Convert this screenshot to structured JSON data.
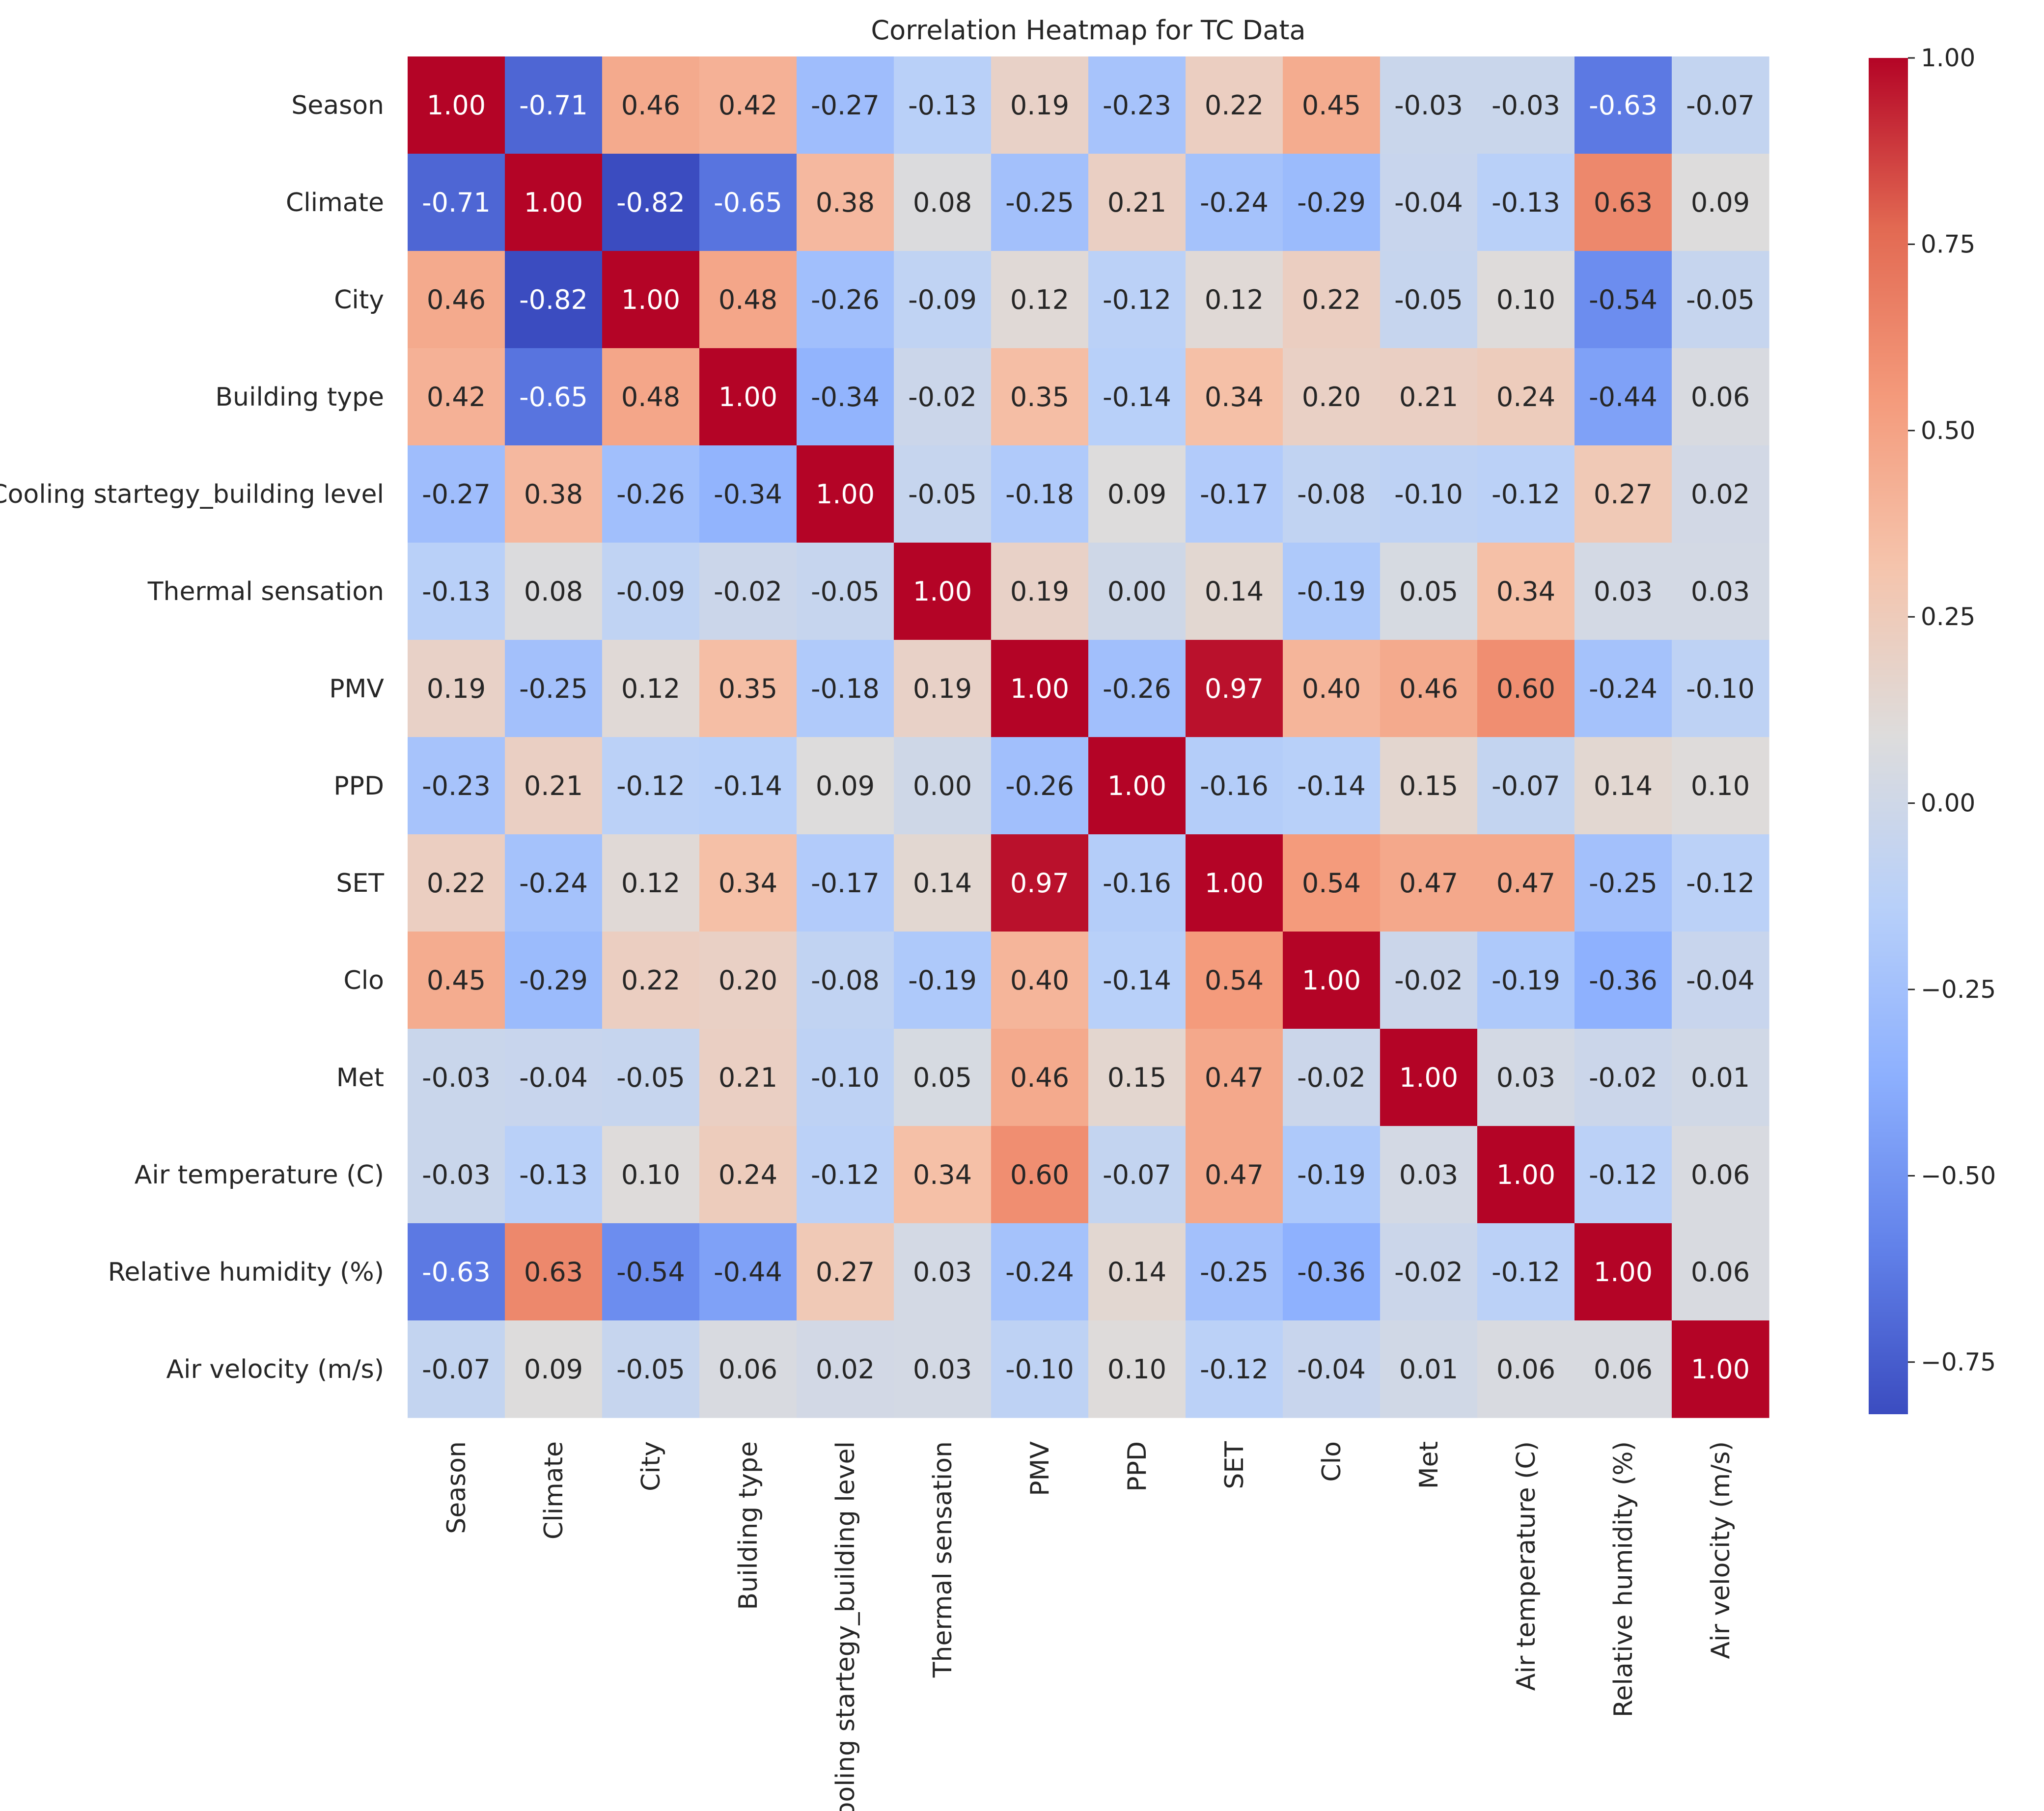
{
  "chart_data": {
    "type": "heatmap",
    "title": "Correlation Heatmap for TC Data",
    "xlabel": "",
    "ylabel": "",
    "colormap": "coolwarm",
    "colormap_stops": [
      "#3b4cc0",
      "#6282ea",
      "#8db0fe",
      "#b8d0f9",
      "#dddcdc",
      "#f5c4ac",
      "#f49a7b",
      "#e26952",
      "#b40426"
    ],
    "value_range": [
      -0.82,
      1.0
    ],
    "grid": false,
    "legend": "colorbar-right",
    "labels": [
      "Season",
      "Climate",
      "City",
      "Building type",
      "Cooling startegy_building level",
      "Thermal sensation",
      "PMV",
      "PPD",
      "SET",
      "Clo",
      "Met",
      "Air temperature (C)",
      "Relative humidity (%)",
      "Air velocity (m/s)"
    ],
    "values": [
      [
        1.0,
        -0.71,
        0.46,
        0.42,
        -0.27,
        -0.13,
        0.19,
        -0.23,
        0.22,
        0.45,
        -0.03,
        -0.03,
        -0.63,
        -0.07
      ],
      [
        -0.71,
        1.0,
        -0.82,
        -0.65,
        0.38,
        0.08,
        -0.25,
        0.21,
        -0.24,
        -0.29,
        -0.04,
        -0.13,
        0.63,
        0.09
      ],
      [
        0.46,
        -0.82,
        1.0,
        0.48,
        -0.26,
        -0.09,
        0.12,
        -0.12,
        0.12,
        0.22,
        -0.05,
        0.1,
        -0.54,
        -0.05
      ],
      [
        0.42,
        -0.65,
        0.48,
        1.0,
        -0.34,
        -0.02,
        0.35,
        -0.14,
        0.34,
        0.2,
        0.21,
        0.24,
        -0.44,
        0.06
      ],
      [
        -0.27,
        0.38,
        -0.26,
        -0.34,
        1.0,
        -0.05,
        -0.18,
        0.09,
        -0.17,
        -0.08,
        -0.1,
        -0.12,
        0.27,
        0.02
      ],
      [
        -0.13,
        0.08,
        -0.09,
        -0.02,
        -0.05,
        1.0,
        0.19,
        0.0,
        0.14,
        -0.19,
        0.05,
        0.34,
        0.03,
        0.03
      ],
      [
        0.19,
        -0.25,
        0.12,
        0.35,
        -0.18,
        0.19,
        1.0,
        -0.26,
        0.97,
        0.4,
        0.46,
        0.6,
        -0.24,
        -0.1
      ],
      [
        -0.23,
        0.21,
        -0.12,
        -0.14,
        0.09,
        0.0,
        -0.26,
        1.0,
        -0.16,
        -0.14,
        0.15,
        -0.07,
        0.14,
        0.1
      ],
      [
        0.22,
        -0.24,
        0.12,
        0.34,
        -0.17,
        0.14,
        0.97,
        -0.16,
        1.0,
        0.54,
        0.47,
        0.47,
        -0.25,
        -0.12
      ],
      [
        0.45,
        -0.29,
        0.22,
        0.2,
        -0.08,
        -0.19,
        0.4,
        -0.14,
        0.54,
        1.0,
        -0.02,
        -0.19,
        -0.36,
        -0.04
      ],
      [
        -0.03,
        -0.04,
        -0.05,
        0.21,
        -0.1,
        0.05,
        0.46,
        0.15,
        0.47,
        -0.02,
        1.0,
        0.03,
        -0.02,
        0.01
      ],
      [
        -0.03,
        -0.13,
        0.1,
        0.24,
        -0.12,
        0.34,
        0.6,
        -0.07,
        0.47,
        -0.19,
        0.03,
        1.0,
        -0.12,
        0.06
      ],
      [
        -0.63,
        0.63,
        -0.54,
        -0.44,
        0.27,
        0.03,
        -0.24,
        0.14,
        -0.25,
        -0.36,
        -0.02,
        -0.12,
        1.0,
        0.06
      ],
      [
        -0.07,
        0.09,
        -0.05,
        0.06,
        0.02,
        0.03,
        -0.1,
        0.1,
        -0.12,
        -0.04,
        0.01,
        0.06,
        0.06,
        1.0
      ]
    ],
    "colorbar_ticks": [
      1.0,
      0.75,
      0.5,
      0.25,
      0.0,
      -0.25,
      -0.5,
      -0.75
    ],
    "colorbar_tick_labels": [
      "1.00",
      "0.75",
      "0.50",
      "0.25",
      "0.00",
      "−0.25",
      "−0.50",
      "−0.75"
    ]
  }
}
